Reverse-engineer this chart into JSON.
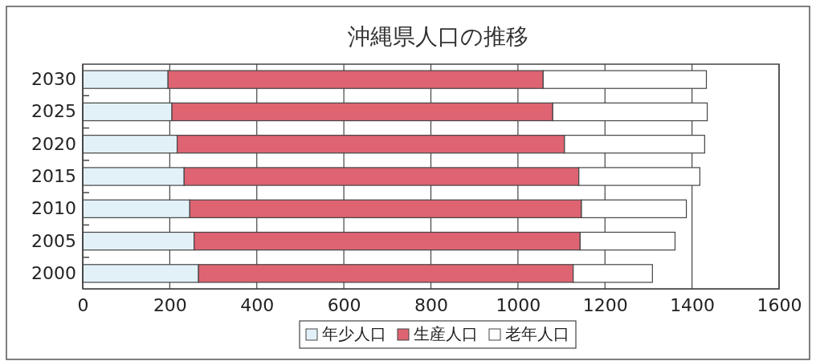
{
  "chart_data": {
    "type": "bar",
    "orientation": "horizontal",
    "stacked": true,
    "title": "沖縄県人口の推移",
    "categories": [
      "2030",
      "2025",
      "2020",
      "2015",
      "2010",
      "2005",
      "2000"
    ],
    "series": [
      {
        "name": "年少人口",
        "color": "#e2f1f8",
        "values": [
          196,
          205,
          217,
          233,
          246,
          256,
          266
        ]
      },
      {
        "name": "生産人口",
        "color": "#de6472",
        "values": [
          862,
          875,
          890,
          907,
          900,
          887,
          861
        ]
      },
      {
        "name": "老年人口",
        "color": "#ffffff",
        "values": [
          375,
          355,
          322,
          278,
          241,
          218,
          182
        ]
      }
    ],
    "xlim": [
      0,
      1600
    ],
    "xticks": [
      0,
      200,
      400,
      600,
      800,
      1000,
      1200,
      1400,
      1600
    ],
    "grid": "x",
    "legend": "bottom"
  }
}
